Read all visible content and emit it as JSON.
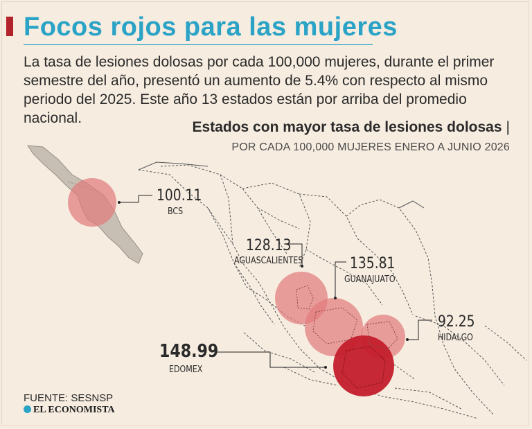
{
  "header": {
    "title": "Focos rojos para las mujeres",
    "intro": "La tasa de lesiones dolosas por cada 100,000 mujeres, durante el primer semestre del año, presentó un aumento de 5.4% con respecto al mismo periodo del 2025. Este año 13 estados están por arriba del promedio nacional."
  },
  "map": {
    "subtitle": "Estados con mayor tasa de lesiones dolosas",
    "subtitle_mark": "|",
    "subsubtitle": "POR CADA 100,000 MUJERES ENERO A JUNIO 2026",
    "markers": [
      {
        "state": "BCS",
        "value": "100.11",
        "color": "#e27a7a"
      },
      {
        "state": "AGUASCALIENTES",
        "value": "128.13",
        "color": "#e27a7a"
      },
      {
        "state": "GUANAJUATO",
        "value": "135.81",
        "color": "#e27a7a"
      },
      {
        "state": "HIDALGO",
        "value": "92.25",
        "color": "#e27a7a"
      },
      {
        "state": "EDOMEX",
        "value": "148.99",
        "color": "#c41e2b"
      }
    ]
  },
  "footer": {
    "source": "FUENTE: SESNSP",
    "brand": "EL ECONOMISTA"
  }
}
